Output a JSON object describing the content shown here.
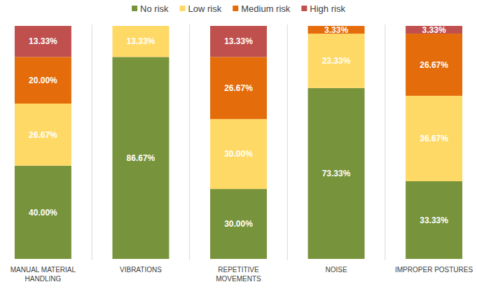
{
  "chart_data": {
    "type": "bar",
    "stacked": true,
    "data_labels": true,
    "tick_labels": false,
    "legend": "top",
    "categories": [
      "MANUAL MATERIAL HANDLING",
      "VIBRATIONS",
      "REPETITIVE MOVEMENTS",
      "NOISE",
      "IMPROPER POSTURES"
    ],
    "ylim": [
      0,
      100
    ],
    "series": [
      {
        "name": "No risk",
        "color": "#77933c",
        "values": [
          40.0,
          86.67,
          30.0,
          73.33,
          33.33
        ],
        "value_labels": [
          "40.00%",
          "86.67%",
          "30.00%",
          "73.33%",
          "33.33%"
        ]
      },
      {
        "name": "Low risk",
        "color": "#ffd966",
        "values": [
          26.67,
          13.33,
          30.0,
          23.33,
          36.67
        ],
        "value_labels": [
          "26.67%",
          "13.33%",
          "30.00%",
          "23.33%",
          "36.67%"
        ]
      },
      {
        "name": "Medium risk",
        "color": "#e46c0a",
        "values": [
          20.0,
          null,
          26.67,
          3.33,
          26.67
        ],
        "value_labels": [
          "20.00%",
          null,
          "26.67%",
          "3.33%",
          "26.67%"
        ]
      },
      {
        "name": "High risk",
        "color": "#c0504d",
        "values": [
          13.33,
          null,
          13.33,
          null,
          3.33
        ],
        "value_labels": [
          "13.33%",
          null,
          "13.33%",
          null,
          "3.33%"
        ]
      }
    ]
  }
}
